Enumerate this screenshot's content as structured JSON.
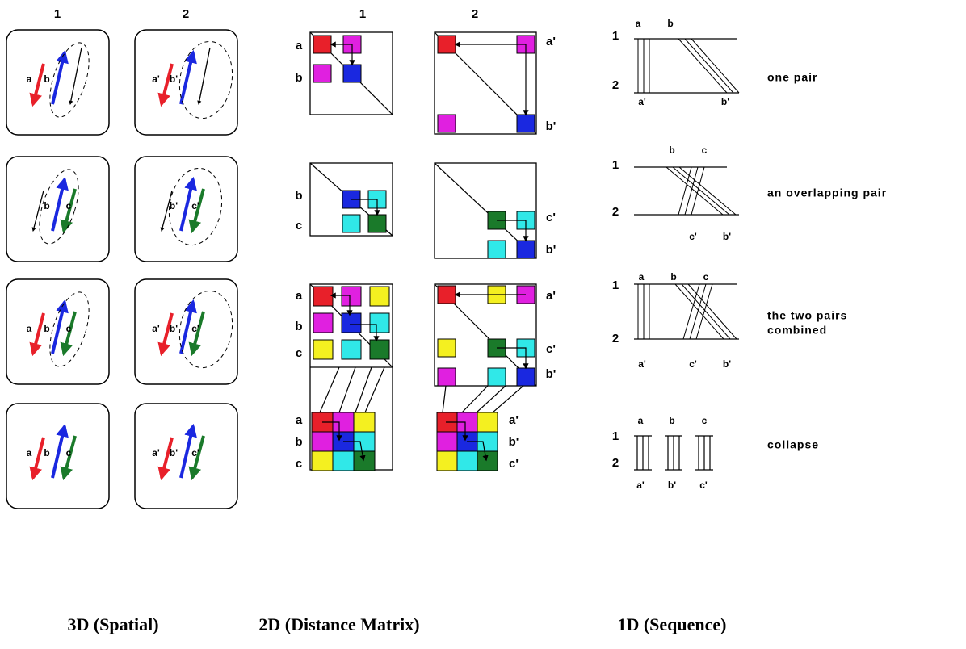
{
  "spatial": {
    "columns": [
      "1",
      "2"
    ],
    "rows": [
      {
        "left": [
          "a",
          "b"
        ],
        "right": [
          "a'",
          "b'"
        ]
      },
      {
        "left": [
          "b",
          "c"
        ],
        "right": [
          "b'",
          "c'"
        ]
      },
      {
        "left": [
          "a",
          "b",
          "c"
        ],
        "right": [
          "a'",
          "b'",
          "c'"
        ]
      },
      {
        "left": [
          "a",
          "b",
          "c"
        ],
        "right": [
          "a'",
          "b'",
          "c'"
        ]
      }
    ]
  },
  "matrix": {
    "columns": [
      "1",
      "2"
    ],
    "rows": [
      {
        "left": [
          "a",
          "b"
        ],
        "right": [
          "a'",
          "b'"
        ]
      },
      {
        "left": [
          "b",
          "c"
        ],
        "right": [
          "c'",
          "b'"
        ]
      },
      {
        "left": [
          "a",
          "b",
          "c",
          "a",
          "b",
          "c"
        ],
        "right": [
          "a'",
          "c'",
          "b'",
          "a'",
          "b'",
          "c'"
        ]
      }
    ]
  },
  "sequence": {
    "rows": [
      {
        "strands": [
          "1",
          "2"
        ],
        "top": [
          "a",
          "b"
        ],
        "bottom": [
          "a'",
          "b'"
        ],
        "caption": [
          "one pair"
        ]
      },
      {
        "strands": [
          "1",
          "2"
        ],
        "top": [
          "b",
          "c"
        ],
        "bottom": [
          "c'",
          "b'"
        ],
        "caption": [
          "an overlapping pair"
        ]
      },
      {
        "strands": [
          "1",
          "2"
        ],
        "top": [
          "a",
          "b",
          "c"
        ],
        "bottom": [
          "a'",
          "c'",
          "b'"
        ],
        "caption": [
          "the two pairs",
          "combined"
        ]
      },
      {
        "strands": [
          "1",
          "2"
        ],
        "top": [
          "a",
          "b",
          "c"
        ],
        "bottom": [
          "a'",
          "b'",
          "c'"
        ],
        "caption": [
          "collapse"
        ]
      }
    ]
  },
  "footer": [
    "3D (Spatial)",
    "2D (Distance Matrix)",
    "1D (Sequence)"
  ]
}
